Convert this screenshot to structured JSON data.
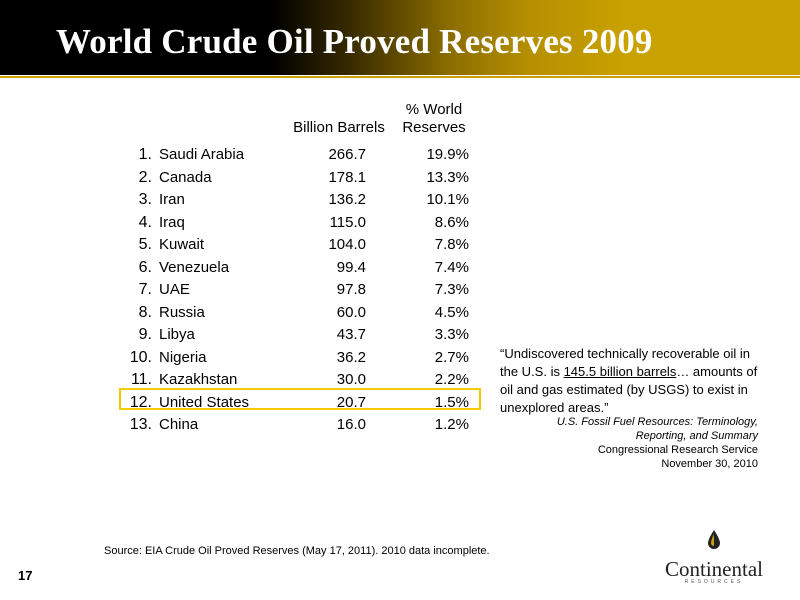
{
  "title": "World Crude Oil Proved Reserves 2009",
  "columns": {
    "barrels": "Billion Barrels",
    "world_line1": "% World",
    "world_line2": "Reserves"
  },
  "rows": [
    {
      "rank": "1.",
      "country": "Saudi Arabia",
      "barrels": "266.7",
      "pct": "19.9%"
    },
    {
      "rank": "2.",
      "country": "Canada",
      "barrels": "178.1",
      "pct": "13.3%"
    },
    {
      "rank": "3.",
      "country": "Iran",
      "barrels": "136.2",
      "pct": "10.1%"
    },
    {
      "rank": "4.",
      "country": "Iraq",
      "barrels": "115.0",
      "pct": "8.6%"
    },
    {
      "rank": "5.",
      "country": "Kuwait",
      "barrels": "104.0",
      "pct": "7.8%"
    },
    {
      "rank": "6.",
      "country": "Venezuela",
      "barrels": "99.4",
      "pct": "7.4%"
    },
    {
      "rank": "7.",
      "country": "UAE",
      "barrels": "97.8",
      "pct": "7.3%"
    },
    {
      "rank": "8.",
      "country": "Russia",
      "barrels": "60.0",
      "pct": "4.5%"
    },
    {
      "rank": "9.",
      "country": "Libya",
      "barrels": "43.7",
      "pct": "3.3%"
    },
    {
      "rank": "10.",
      "country": "Nigeria",
      "barrels": "36.2",
      "pct": "2.7%"
    },
    {
      "rank": "11.",
      "country": "Kazakhstan",
      "barrels": "30.0",
      "pct": "2.2%"
    },
    {
      "rank": "12.",
      "country": "United States",
      "barrels": "20.7",
      "pct": "1.5%"
    },
    {
      "rank": "13.",
      "country": "China",
      "barrels": "16.0",
      "pct": "1.2%"
    }
  ],
  "highlight_color": "#f2cc00",
  "quote": {
    "part1": "“Undiscovered technically recoverable oil in the U.S. is ",
    "underlined": "145.5 billion barrels",
    "part2": "… amounts of oil and gas estimated (by USGS) to exist in unexplored areas.”"
  },
  "citation": {
    "line1": "U.S. Fossil Fuel Resources: Terminology,",
    "line2": "Reporting, and Summary",
    "line3": "Congressional Research Service",
    "line4": "November 30, 2010"
  },
  "source": "Source: EIA Crude Oil Proved Reserves (May 17, 2011). 2010 data incomplete.",
  "page_number": "17",
  "logo": {
    "name": "Continental",
    "sub": "RESOURCES"
  }
}
